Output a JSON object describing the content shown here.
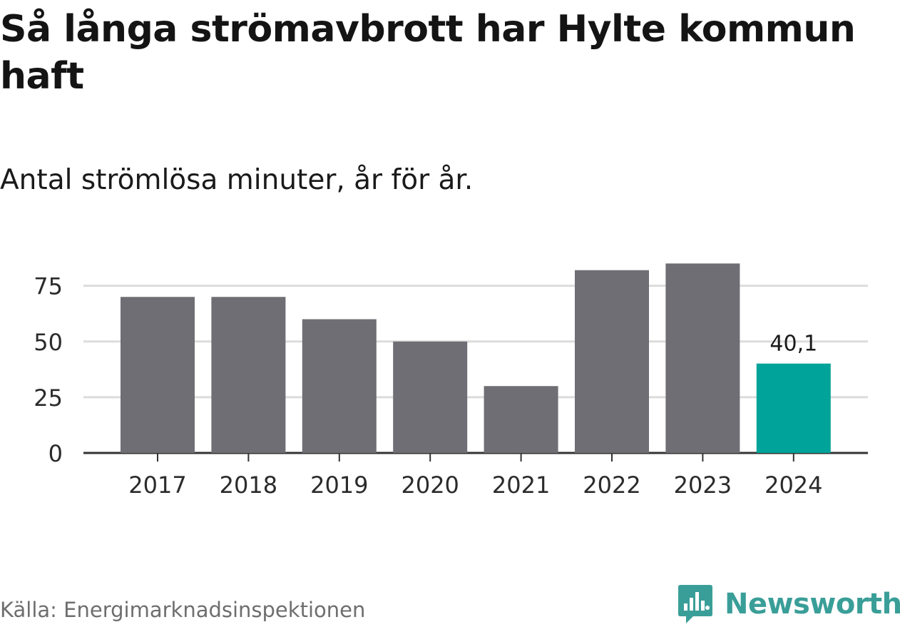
{
  "title": "Så långa strömavbrott har Hylte kommun haft",
  "subtitle": "Antal strömlösa minuter, år för år.",
  "source": "Källa: Energimarknadsinspektionen",
  "brand": {
    "name": "Newsworthy",
    "color": "#3a9e98",
    "icon": "newsworthy-logo-icon"
  },
  "chart_data": {
    "type": "bar",
    "categories": [
      "2017",
      "2018",
      "2019",
      "2020",
      "2021",
      "2022",
      "2023",
      "2024"
    ],
    "values": [
      70,
      70,
      60,
      50,
      30,
      82,
      85,
      40.1
    ],
    "yticks": [
      0,
      25,
      50,
      75
    ],
    "ylim": [
      0,
      88
    ],
    "grid": true,
    "bar_color": "#6f6e74",
    "highlight": {
      "category": "2024",
      "color": "#00a399",
      "label": "40,1"
    }
  }
}
